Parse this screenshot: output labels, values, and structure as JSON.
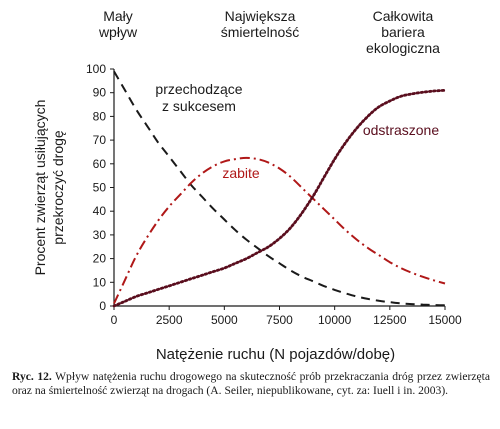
{
  "chart_data": {
    "type": "line",
    "xlabel": "Natężenie ruchu (N pojazdów/dobę)",
    "ylabel_lines": [
      "Procent zwierząt usiłujących",
      "przekroczyć drogę"
    ],
    "xlim": [
      0,
      15000
    ],
    "ylim": [
      0,
      100
    ],
    "x_ticks": [
      0,
      2500,
      5000,
      7500,
      10000,
      12500,
      15000
    ],
    "y_ticks": [
      0,
      10,
      20,
      30,
      40,
      50,
      60,
      70,
      80,
      90,
      100
    ],
    "zones": [
      {
        "lines": [
          "Mały",
          "wpływ"
        ]
      },
      {
        "lines": [
          "Największa",
          "śmiertelność"
        ]
      },
      {
        "lines": [
          "Całkowita",
          "bariera",
          "ekologiczna"
        ]
      }
    ],
    "series": [
      {
        "name_lines": [
          "przechodzące",
          "z sukcesem"
        ],
        "color": "#1a1a1a",
        "style": "dashed",
        "x": [
          0,
          500,
          1000,
          1500,
          2000,
          2500,
          3000,
          3500,
          4000,
          4500,
          5000,
          5500,
          6000,
          6500,
          7000,
          7500,
          8000,
          8500,
          9000,
          9500,
          10000,
          10500,
          11000,
          11500,
          12000,
          12500,
          13000,
          13500,
          14000,
          14500,
          15000
        ],
        "y": [
          99,
          91,
          83,
          76,
          69,
          63,
          57,
          51,
          46,
          41,
          36.5,
          32,
          28,
          24.5,
          21,
          18,
          15,
          12.5,
          10.5,
          8.5,
          6.8,
          5.3,
          4,
          3,
          2.2,
          1.6,
          1.1,
          0.8,
          0.6,
          0.4,
          0.3
        ]
      },
      {
        "name_lines": [
          "zabite"
        ],
        "color": "#b01818",
        "style": "dashdot",
        "x": [
          0,
          500,
          1000,
          1500,
          2000,
          2500,
          3000,
          3500,
          4000,
          4500,
          5000,
          5500,
          6000,
          6500,
          7000,
          7500,
          8000,
          8500,
          9000,
          9500,
          10000,
          10500,
          11000,
          11500,
          12000,
          12500,
          13000,
          13500,
          14000,
          14500,
          15000
        ],
        "y": [
          1,
          11,
          21,
          29,
          36,
          42,
          47,
          52,
          56,
          59,
          61,
          62,
          62.5,
          62,
          60.5,
          58,
          54.5,
          50,
          45.5,
          41,
          36.5,
          32,
          28,
          24.5,
          21.5,
          18.5,
          16,
          14,
          12.3,
          10.8,
          9.5
        ]
      },
      {
        "name_lines": [
          "odstraszone"
        ],
        "color": "#5a0e1e",
        "style": "dotted",
        "x": [
          0,
          500,
          1000,
          1500,
          2000,
          2500,
          3000,
          3500,
          4000,
          4500,
          5000,
          5500,
          6000,
          6500,
          7000,
          7500,
          8000,
          8500,
          9000,
          9500,
          10000,
          10500,
          11000,
          11500,
          12000,
          12500,
          13000,
          13500,
          14000,
          14500,
          15000
        ],
        "y": [
          0,
          2,
          4,
          5.5,
          7,
          8.5,
          10,
          11.5,
          13,
          14.5,
          16,
          18,
          20,
          22.5,
          25,
          28.5,
          33,
          39,
          46,
          54,
          62,
          69,
          75,
          80,
          84,
          86.5,
          88.5,
          89.5,
          90.2,
          90.7,
          91
        ]
      }
    ]
  },
  "caption": {
    "label": "Ryc. 12.",
    "text": " Wpływ natężenia ruchu drogowego na skuteczność prób przekraczania dróg przez zwierzęta oraz na śmiertelność zwierząt na drogach (A. Seiler, niepublikowane, cyt. za: Iuell i in. 2003)."
  },
  "colors": {
    "axis": "#1a1a1a",
    "text": "#1a1a1a",
    "label_red": "#b01818"
  }
}
